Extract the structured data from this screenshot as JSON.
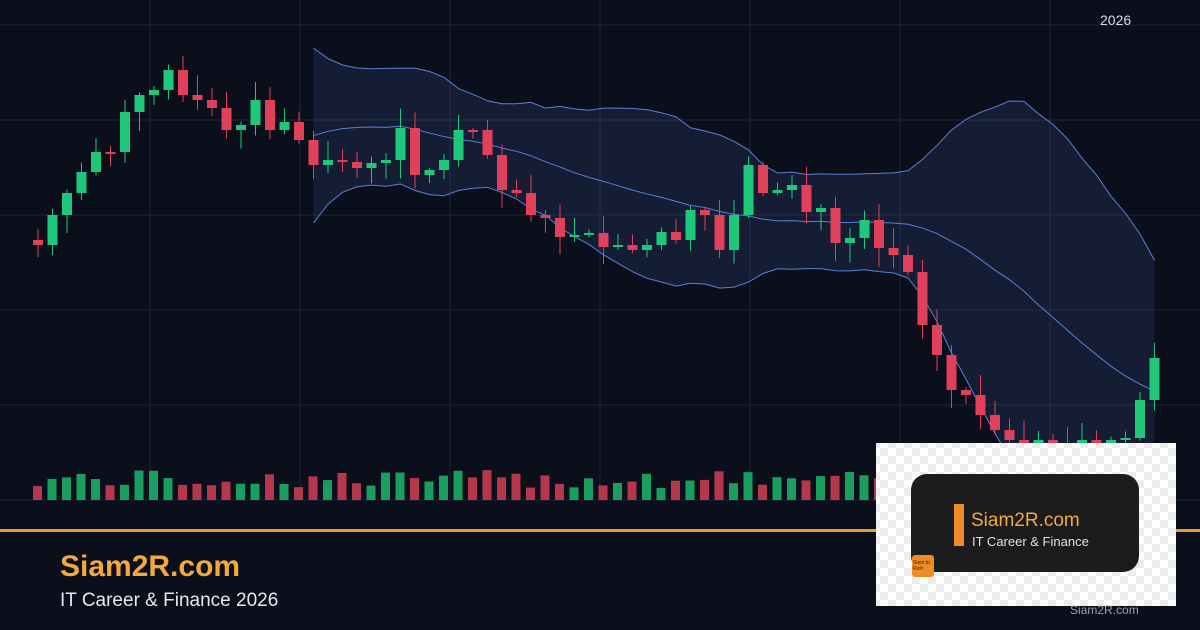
{
  "header": {
    "year": "2026"
  },
  "brand": {
    "title": "Siam2R.com",
    "subtitle": "IT Career & Finance 2026"
  },
  "card": {
    "title": "Siam2R.com",
    "subtitle": "IT Career & Finance",
    "logo": "Siam to Rich"
  },
  "watermark": "Siam2R.com"
}
